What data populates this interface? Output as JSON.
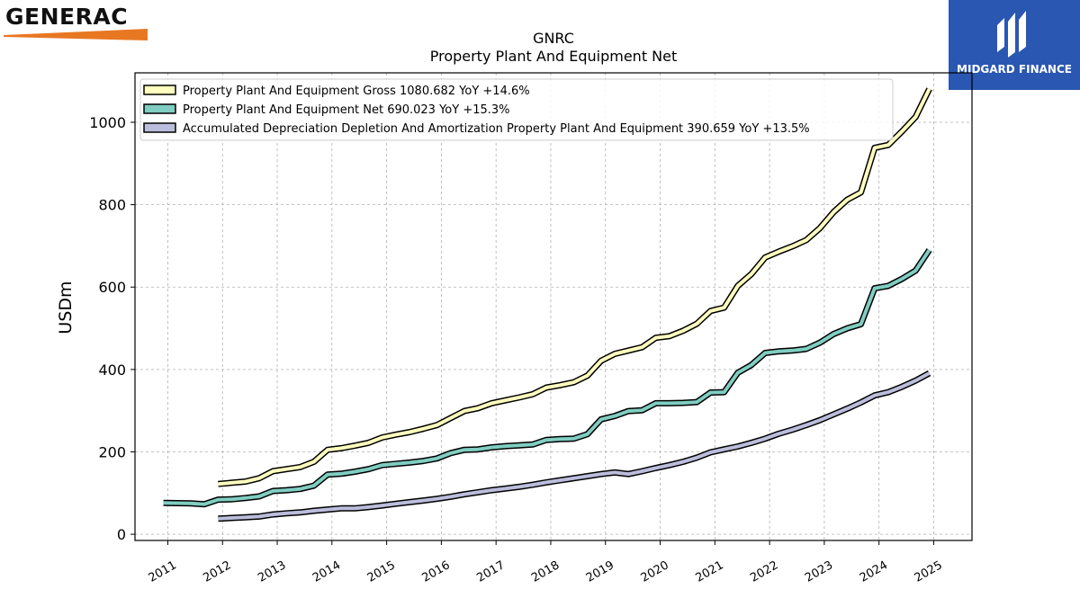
{
  "branding": {
    "company_logo_text": "GENERAC",
    "company_logo_color": "#e87722",
    "publisher_logo_text": "MIDGARD FINANCE",
    "publisher_logo_bg": "#2a57b1"
  },
  "chart_data": {
    "type": "line",
    "title": "GNRC",
    "subtitle": "Property Plant And Equipment Net",
    "ylabel": "USDm",
    "xlabel": "",
    "ylim": [
      -15,
      1120
    ],
    "yticks": [
      0,
      200,
      400,
      600,
      800,
      1000
    ],
    "xlim": [
      2010.4,
      2025.7
    ],
    "xticks": [
      "2011",
      "2012",
      "2013",
      "2014",
      "2015",
      "2016",
      "2017",
      "2018",
      "2019",
      "2020",
      "2021",
      "2022",
      "2023",
      "2024",
      "2025"
    ],
    "grid": true,
    "legend_position": "top-left",
    "series": [
      {
        "name": "Property Plant And Equipment Gross  1080.682 YoY +14.6%",
        "color": "#ffffbf",
        "x": [
          2011.92,
          2012.42,
          2012.67,
          2012.92,
          2013.17,
          2013.42,
          2013.67,
          2013.92,
          2014.17,
          2014.42,
          2014.67,
          2014.92,
          2015.17,
          2015.42,
          2015.67,
          2015.92,
          2016.17,
          2016.42,
          2016.67,
          2016.92,
          2017.17,
          2017.42,
          2017.67,
          2017.92,
          2018.17,
          2018.42,
          2018.67,
          2018.92,
          2019.17,
          2019.42,
          2019.67,
          2019.92,
          2020.17,
          2020.42,
          2020.67,
          2020.92,
          2021.17,
          2021.42,
          2021.67,
          2021.92,
          2022.17,
          2022.42,
          2022.67,
          2022.92,
          2023.17,
          2023.42,
          2023.67,
          2023.92,
          2024.17,
          2024.42,
          2024.67,
          2024.92
        ],
        "values": [
          122,
          128,
          136,
          153,
          158,
          163,
          176,
          205,
          209,
          215,
          222,
          235,
          242,
          248,
          256,
          265,
          282,
          299,
          306,
          318,
          325,
          332,
          340,
          356,
          362,
          369,
          385,
          421,
          438,
          446,
          454,
          477,
          481,
          494,
          511,
          542,
          550,
          603,
          632,
          672,
          686,
          699,
          714,
          743,
          782,
          812,
          830,
          938,
          945,
          978,
          1013,
          1081
        ]
      },
      {
        "name": "Property Plant And Equipment Net  690.023 YoY +15.3%",
        "color": "#80cdc1",
        "x": [
          2010.92,
          2011.42,
          2011.67,
          2011.92,
          2012.17,
          2012.42,
          2012.67,
          2012.92,
          2013.17,
          2013.42,
          2013.67,
          2013.92,
          2014.17,
          2014.42,
          2014.67,
          2014.92,
          2015.17,
          2015.42,
          2015.67,
          2015.92,
          2016.17,
          2016.42,
          2016.67,
          2016.92,
          2017.17,
          2017.42,
          2017.67,
          2017.92,
          2018.17,
          2018.42,
          2018.67,
          2018.92,
          2019.17,
          2019.42,
          2019.67,
          2019.92,
          2020.17,
          2020.42,
          2020.67,
          2020.92,
          2021.17,
          2021.42,
          2021.67,
          2021.92,
          2022.17,
          2022.42,
          2022.67,
          2022.92,
          2023.17,
          2023.42,
          2023.67,
          2023.92,
          2024.17,
          2024.42,
          2024.67,
          2024.92
        ],
        "values": [
          76,
          75,
          73,
          84,
          85,
          88,
          92,
          105,
          107,
          110,
          118,
          145,
          147,
          152,
          158,
          168,
          171,
          174,
          178,
          184,
          197,
          205,
          206,
          211,
          214,
          216,
          218,
          229,
          231,
          232,
          243,
          279,
          287,
          299,
          301,
          318,
          318,
          319,
          321,
          344,
          345,
          392,
          411,
          440,
          444,
          446,
          450,
          465,
          486,
          500,
          510,
          597,
          603,
          620,
          640,
          690
        ]
      },
      {
        "name": "Accumulated Depreciation Depletion And Amortization Property Plant And Equipment  390.659 YoY +13.5%",
        "color": "#bcbddc",
        "x": [
          2011.92,
          2012.42,
          2012.67,
          2012.92,
          2013.17,
          2013.42,
          2013.67,
          2013.92,
          2014.17,
          2014.42,
          2014.67,
          2014.92,
          2015.17,
          2015.42,
          2015.67,
          2015.92,
          2016.17,
          2016.42,
          2016.67,
          2016.92,
          2017.17,
          2017.42,
          2017.67,
          2017.92,
          2018.17,
          2018.42,
          2018.67,
          2018.92,
          2019.17,
          2019.42,
          2019.67,
          2019.92,
          2020.17,
          2020.42,
          2020.67,
          2020.92,
          2021.17,
          2021.42,
          2021.67,
          2021.92,
          2022.17,
          2022.42,
          2022.67,
          2022.92,
          2023.17,
          2023.42,
          2023.67,
          2023.92,
          2024.17,
          2024.42,
          2024.67,
          2024.92
        ],
        "values": [
          38,
          41,
          43,
          48,
          51,
          53,
          57,
          60,
          63,
          63,
          66,
          70,
          74,
          78,
          82,
          86,
          91,
          97,
          102,
          107,
          111,
          115,
          120,
          126,
          131,
          136,
          141,
          146,
          150,
          146,
          153,
          161,
          168,
          176,
          186,
          199,
          206,
          213,
          222,
          232,
          244,
          254,
          265,
          277,
          291,
          305,
          320,
          337,
          345,
          358,
          373,
          391
        ]
      }
    ]
  }
}
